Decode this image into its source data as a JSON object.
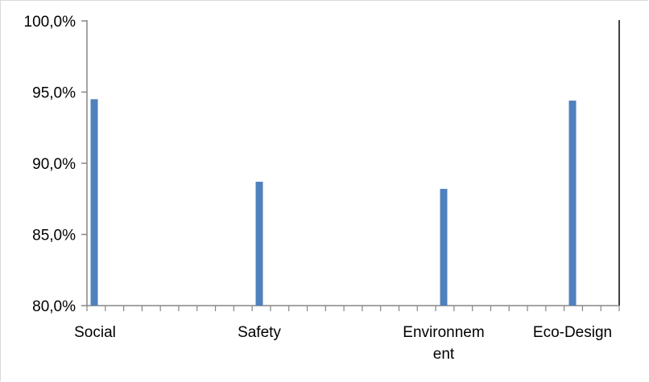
{
  "chart_data": {
    "type": "bar",
    "categories": [
      "Social",
      "Safety",
      "Environnement",
      "Eco-Design"
    ],
    "category_label_lines": [
      [
        "Social"
      ],
      [
        "Safety"
      ],
      [
        "Environnem",
        "ent"
      ],
      [
        "Eco-Design"
      ]
    ],
    "values": [
      94.5,
      88.7,
      88.2,
      94.4
    ],
    "ylim": [
      80,
      100
    ],
    "yticks": [
      80,
      85,
      90,
      95,
      100
    ],
    "ytick_labels": [
      "80,0%",
      "85,0%",
      "90,0%",
      "95,0%",
      "100,0%"
    ],
    "title": "",
    "xlabel": "",
    "ylabel": "",
    "grid": false,
    "bar_color": "#4f81bd"
  }
}
